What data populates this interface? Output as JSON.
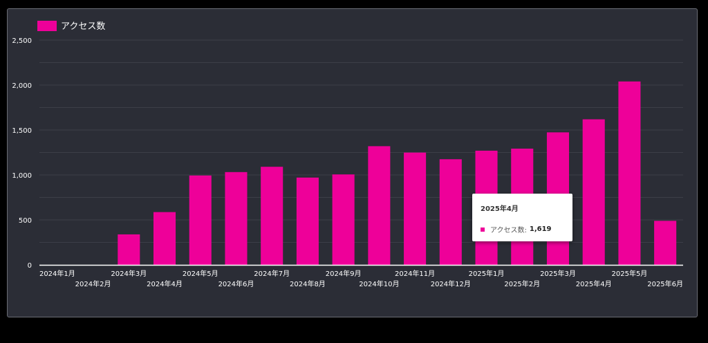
{
  "chart_data": {
    "type": "bar",
    "categories": [
      "2024年1月",
      "2024年2月",
      "2024年3月",
      "2024年4月",
      "2024年5月",
      "2024年6月",
      "2024年7月",
      "2024年8月",
      "2024年9月",
      "2024年10月",
      "2024年11月",
      "2024年12月",
      "2025年1月",
      "2025年2月",
      "2025年3月",
      "2025年4月",
      "2025年5月",
      "2025年6月"
    ],
    "series": [
      {
        "name": "アクセス数",
        "values": [
          0,
          0,
          339,
          587,
          994,
          1032,
          1091,
          971,
          1006,
          1320,
          1249,
          1175,
          1270,
          1293,
          1474,
          1619,
          2040,
          490
        ]
      }
    ],
    "title": "",
    "xlabel": "",
    "ylabel": "",
    "ylim": [
      0,
      2500
    ],
    "yticks": [
      "0",
      "500",
      "1,000",
      "1,500",
      "2,000",
      "2,500"
    ],
    "grid": true,
    "legend": "top-left",
    "colors": {
      "bar": "#ee0099",
      "background": "#2b2d36",
      "gridline": "#3c3e48",
      "text": "#ffffff"
    }
  },
  "tooltip": {
    "title": "2025年4月",
    "series_label": "アクセス数:",
    "value": "1,619"
  }
}
